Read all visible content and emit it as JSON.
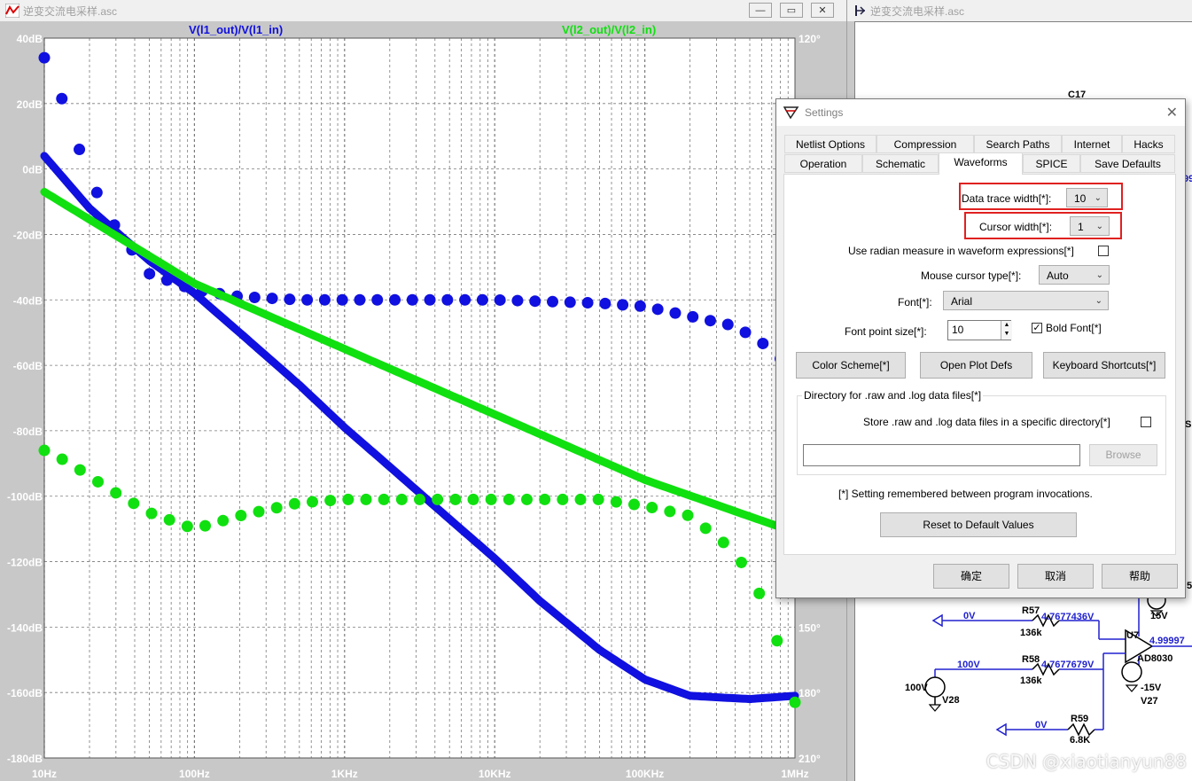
{
  "plot_window": {
    "title": "逆变交流电采样.asc",
    "icon": "waveform-icon",
    "buttons": [
      "minimize",
      "restore",
      "close"
    ],
    "trace1_label": "V(l1_out)/V(l1_in)",
    "trace2_label": "V(l2_out)/V(l2_in)",
    "trace1_color": "#1010e0",
    "trace2_color": "#10e010"
  },
  "chart_data": {
    "type": "line",
    "xscale": "log",
    "x_ticks": [
      "10Hz",
      "100Hz",
      "1KHz",
      "10KHz",
      "100KHz",
      "1MHz"
    ],
    "x_range": [
      10,
      1000000
    ],
    "left_ticks": [
      "40dB",
      "20dB",
      "0dB",
      "-20dB",
      "-40dB",
      "-60dB",
      "-80dB",
      "-100dB",
      "-120dB",
      "-140dB",
      "-160dB",
      "-180dB"
    ],
    "left_range": [
      -180,
      40
    ],
    "right_ticks": [
      "120°",
      "150°",
      "180°",
      "210°"
    ],
    "grid": true,
    "series": [
      {
        "name": "V(l1_out)/V(l1_in)",
        "kind": "magnitude",
        "color": "#1010e0",
        "x": [
          10,
          20,
          50,
          100,
          200,
          500,
          1000,
          2000,
          5000,
          10000,
          20000,
          50000,
          100000,
          200000,
          500000,
          1000000
        ],
        "y": [
          4,
          -12,
          -28,
          -38,
          -50,
          -66,
          -79,
          -91,
          -107,
          -119,
          -132,
          -147,
          -156,
          -161,
          -162,
          -161
        ]
      },
      {
        "name": "V(l1_out)/V(l1_in) phase",
        "kind": "phase",
        "color": "#1010e0",
        "x": [
          10,
          12,
          14,
          16,
          18,
          20,
          30,
          50,
          100,
          200,
          500,
          1000,
          5000,
          10000,
          50000,
          100000,
          200000,
          400000,
          600000,
          800000
        ],
        "y": [
          34,
          26,
          18,
          10,
          3,
          -3,
          -18,
          -32,
          -37,
          -39,
          -40,
          -40,
          -40,
          -40,
          -41,
          -42,
          -45,
          -48,
          -53,
          -58
        ]
      },
      {
        "name": "V(l2_out)/V(l2_in)",
        "kind": "magnitude",
        "color": "#10e010",
        "x": [
          10,
          100,
          1000,
          10000,
          100000,
          1000000
        ],
        "y": [
          -7,
          -35,
          -55,
          -75,
          -95,
          -111
        ]
      },
      {
        "name": "V(l2_out)/V(l2_in) phase",
        "kind": "phase",
        "color": "#10e010",
        "x": [
          10,
          15,
          20,
          30,
          50,
          100,
          200,
          500,
          1000,
          5000,
          10000,
          50000,
          100000,
          200000,
          400000,
          600000,
          800000,
          1000000
        ],
        "y": [
          -86,
          -90,
          -94,
          -99,
          -105,
          -110,
          -106,
          -102,
          -101,
          -101,
          -101,
          -101,
          -103,
          -106,
          -117,
          -131,
          -147,
          -163
        ]
      }
    ]
  },
  "schematic_window": {
    "title": "逆变交流电采样.asc",
    "labels": {
      "c17": "C17",
      "v0a": "0V",
      "r57": "R57",
      "r57v": "136k",
      "n1": "4.7677436V",
      "u7": "U7",
      "n2": "4.99997",
      "ad": "AD8030",
      "v100": "100V",
      "r58": "R58",
      "r58v": "136k",
      "n3": "4.7677679V",
      "src1": "100V",
      "v28": "V28",
      "m15": "-15V",
      "v27": "V27",
      "p15": "15V",
      "r59": "R59",
      "v0b": "0V",
      "r59v": "6.8K",
      "edge1": "99",
      "edge2": "5",
      "edge3": "S"
    }
  },
  "dialog": {
    "title": "Settings",
    "icon": "ltspice-icon",
    "tabs_row1": [
      "Netlist Options",
      "Compression",
      "Search Paths",
      "Internet",
      "Hacks"
    ],
    "tabs_row2": [
      "Operation",
      "Schematic",
      "Waveforms",
      "SPICE",
      "Save Defaults"
    ],
    "active_tab": "Waveforms",
    "data_trace_width_label": "Data trace width[*]:",
    "data_trace_width_value": "10",
    "cursor_width_label": "Cursor width[*]:",
    "cursor_width_value": "1",
    "radian_label": "Use radian measure in waveform expressions[*]",
    "mouse_cursor_label": "Mouse cursor type[*]:",
    "mouse_cursor_value": "Auto",
    "font_label": "Font[*]:",
    "font_value": "Arial",
    "font_size_label": "Font point size[*]:",
    "font_size_value": "10",
    "bold_font_label": "Bold Font[*]",
    "bold_font_checked": "✓",
    "color_scheme_button": "Color Scheme[*]",
    "open_plot_defs_button": "Open Plot Defs",
    "keyboard_shortcuts_button": "Keyboard Shortcuts[*]",
    "dir_group_label": "Directory for .raw and .log data files[*]",
    "store_label": "Store .raw and .log data files in a specific directory[*]",
    "dir_path_value": "",
    "browse_button": "Browse",
    "remembered_note": "[*] Setting remembered between program invocations.",
    "reset_button": "Reset to Default Values",
    "ok_button": "确定",
    "cancel_button": "取消",
    "help_button": "帮助"
  },
  "watermark": "CSDN @xiaotianyun88"
}
